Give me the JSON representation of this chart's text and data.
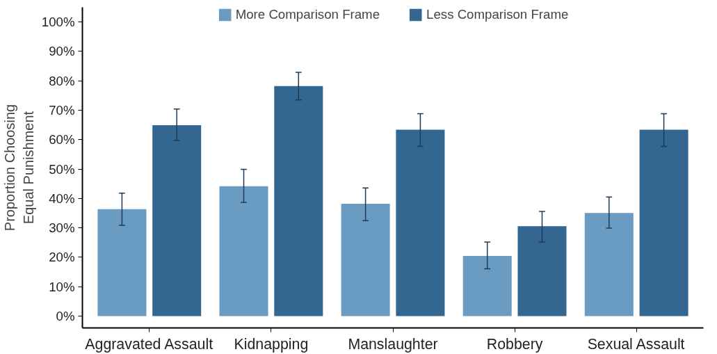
{
  "chart_data": {
    "type": "bar",
    "ylabel": "Proportion Choosing\nEqual Punishment",
    "categories": [
      "Aggravated Assault",
      "Kidnapping",
      "Manslaughter",
      "Robbery",
      "Sexual Assault"
    ],
    "series": [
      {
        "name": "More Comparison Frame",
        "color": "#6a9bc3",
        "values": [
          36.4,
          44.2,
          38.2,
          20.5,
          35.1
        ],
        "errors": [
          [
            30.9,
            41.8
          ],
          [
            38.7,
            49.9
          ],
          [
            32.5,
            43.6
          ],
          [
            16.1,
            25.2
          ],
          [
            29.9,
            40.5
          ]
        ]
      },
      {
        "name": "Less Comparison Frame",
        "color": "#336791",
        "values": [
          64.9,
          78.2,
          63.4,
          30.6,
          63.4
        ],
        "errors": [
          [
            59.7,
            70.4
          ],
          [
            73.5,
            82.9
          ],
          [
            57.7,
            68.8
          ],
          [
            25.2,
            35.6
          ],
          [
            57.7,
            68.8
          ]
        ]
      }
    ],
    "ylim": [
      -4,
      105
    ],
    "yticks": [
      {
        "value": 0,
        "label": "0%"
      },
      {
        "value": 10,
        "label": "10%"
      },
      {
        "value": 20,
        "label": "20%"
      },
      {
        "value": 30,
        "label": "30%"
      },
      {
        "value": 40,
        "label": "40%"
      },
      {
        "value": 50,
        "label": "50%"
      },
      {
        "value": 60,
        "label": "60%"
      },
      {
        "value": 70,
        "label": "70%"
      },
      {
        "value": 80,
        "label": "80%"
      },
      {
        "value": 90,
        "label": "90%"
      },
      {
        "value": 100,
        "label": "100%"
      }
    ],
    "grid": false,
    "legend": "top"
  }
}
